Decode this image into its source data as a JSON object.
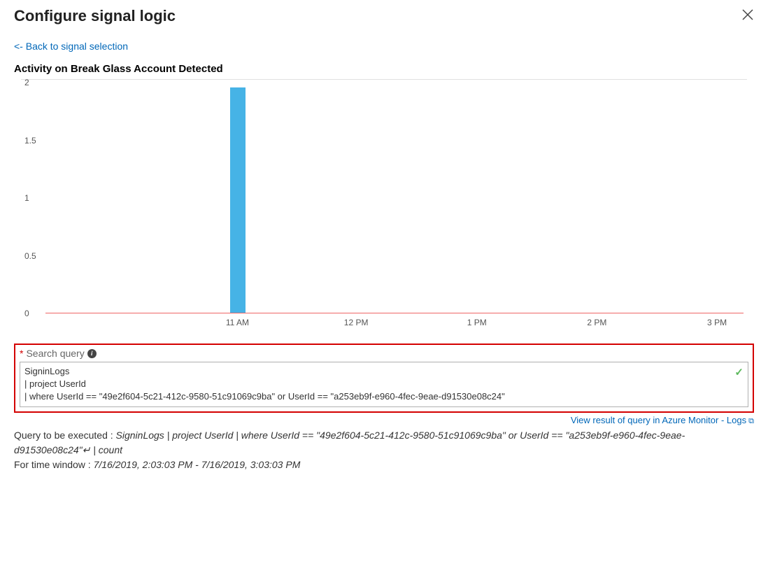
{
  "header": {
    "title": "Configure signal logic"
  },
  "backLink": "<- Back to signal selection",
  "subtitle": "Activity on Break Glass Account Detected",
  "chart": {
    "type": "bar",
    "ylim": [
      0,
      2
    ],
    "yticks": [
      {
        "label": "2",
        "value": 2
      },
      {
        "label": "1.5",
        "value": 1.5
      },
      {
        "label": "1",
        "value": 1
      },
      {
        "label": "0.5",
        "value": 0.5
      },
      {
        "label": "0",
        "value": 0
      }
    ],
    "xticks": [
      {
        "label": "11 AM",
        "pos_pct": 27.5
      },
      {
        "label": "12 PM",
        "pos_pct": 44.5
      },
      {
        "label": "1 PM",
        "pos_pct": 61.8
      },
      {
        "label": "2 PM",
        "pos_pct": 79.0
      },
      {
        "label": "3 PM",
        "pos_pct": 96.2
      }
    ],
    "bars": [
      {
        "value": 1.95,
        "pos_pct": 27.6
      }
    ],
    "bar_color": "#46b3e6",
    "axis_line_color": "#ee6666",
    "background_color": "#ffffff",
    "ytick_color": "#555555",
    "xtick_color": "#555555",
    "tick_fontsize": 12
  },
  "query": {
    "required_mark": "*",
    "label": "Search query",
    "lines": [
      "SigninLogs",
      "| project UserId",
      "| where UserId == \"49e2f604-5c21-412c-9580-51c91069c9ba\" or UserId == \"a253eb9f-e960-4fec-9eae-d91530e08c24\""
    ],
    "valid": true
  },
  "viewLink": "View result of query in Azure Monitor - Logs",
  "footer": {
    "executed_label": "Query to be executed : ",
    "executed_value": "SigninLogs | project UserId | where UserId == \"49e2f604-5c21-412c-9580-51c91069c9ba\" or UserId == \"a253eb9f-e960-4fec-9eae-d91530e08c24\"↵ | count",
    "timewindow_label": "For time window : ",
    "timewindow_value": "7/16/2019, 2:03:03 PM - 7/16/2019, 3:03:03 PM"
  }
}
